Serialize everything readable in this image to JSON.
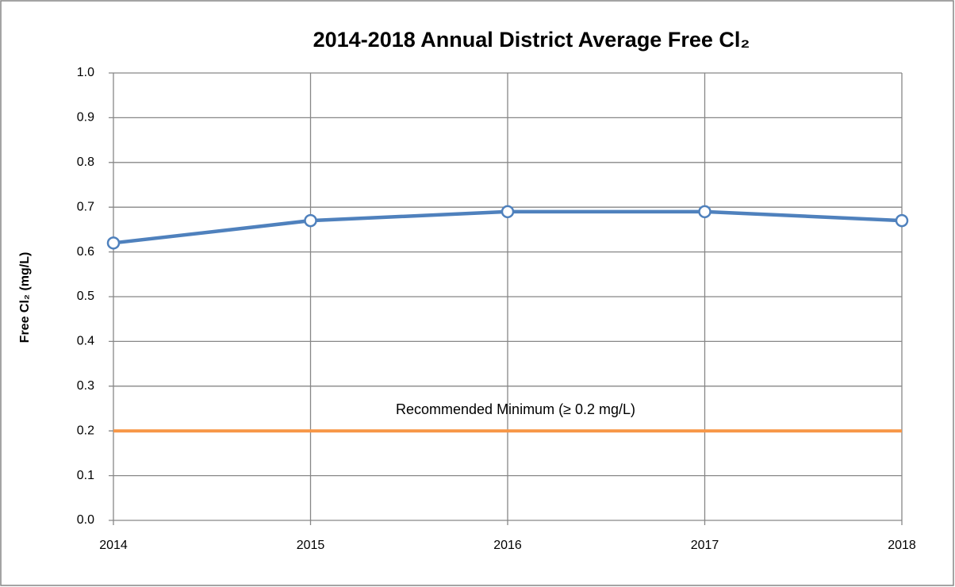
{
  "chart_data": {
    "type": "line",
    "title": "2014-2018 Annual District Average Free Cl₂",
    "y_label": "Free Cl₂ (mg/L)",
    "x": [
      2014,
      2015,
      2016,
      2017,
      2018
    ],
    "series": [
      {
        "name": "District Average Free Cl₂",
        "color": "#4f81bd",
        "values": [
          0.62,
          0.67,
          0.69,
          0.69,
          0.67
        ]
      }
    ],
    "reference_line": {
      "value": 0.2,
      "color": "#f79646",
      "label": "Recommended Minimum  (≥ 0.2 mg/L)"
    },
    "xlim": [
      2014,
      2018
    ],
    "xticks": [
      2014,
      2015,
      2016,
      2017,
      2018
    ],
    "ylim": [
      0,
      1
    ],
    "yticks": [
      {
        "value": 0,
        "label": "0.0"
      },
      0.1,
      0.2,
      0.3,
      0.4,
      0.5,
      0.6,
      0.7,
      0.8,
      0.9,
      {
        "value": 1,
        "label": "1.0"
      }
    ],
    "grid": true,
    "legend": false
  }
}
